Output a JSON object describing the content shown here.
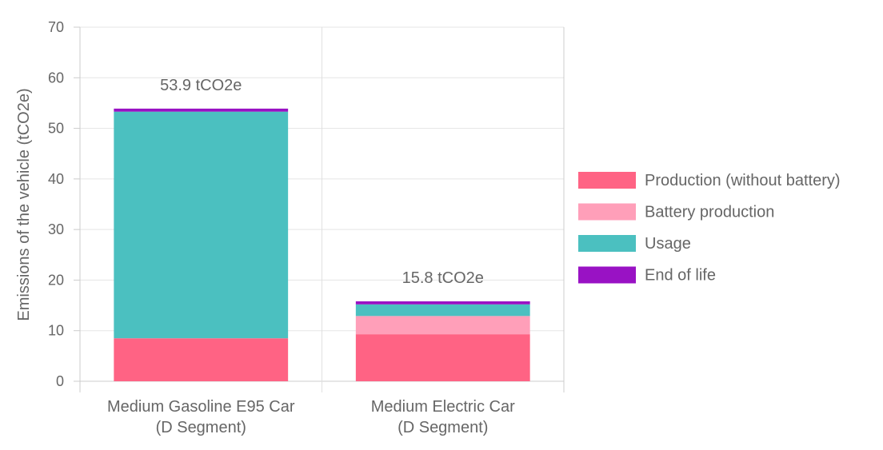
{
  "chart_data": {
    "type": "bar",
    "stacked": true,
    "title": "",
    "xlabel": "",
    "ylabel": "Emissions of the vehicle (tCO2e)",
    "ylim": [
      0,
      70
    ],
    "yticks": [
      0,
      10,
      20,
      30,
      40,
      50,
      60,
      70
    ],
    "grid": true,
    "legend_position": "right",
    "categories": [
      [
        "Medium Gasoline E95 Car",
        "(D Segment)"
      ],
      [
        "Medium Electric Car",
        "(D Segment)"
      ]
    ],
    "totals": [
      "53.9 tCO2e",
      "15.8 tCO2e"
    ],
    "series": [
      {
        "name": "Production (without battery)",
        "color": "#ff6384",
        "values": [
          8.5,
          9.3
        ]
      },
      {
        "name": "Battery production",
        "color": "#ff9fb9",
        "values": [
          0,
          3.6
        ]
      },
      {
        "name": "Usage",
        "color": "#4bc0c0",
        "values": [
          44.8,
          2.3
        ]
      },
      {
        "name": "End of life",
        "color": "#9912c4",
        "values": [
          0.6,
          0.6
        ]
      }
    ]
  }
}
